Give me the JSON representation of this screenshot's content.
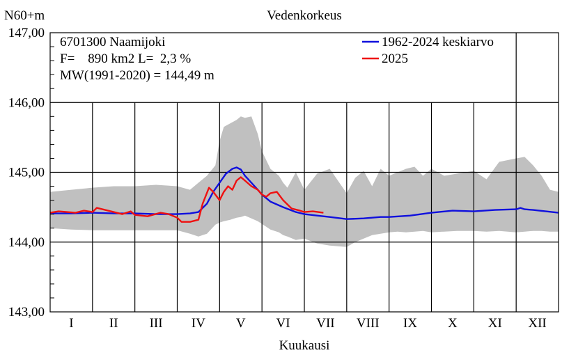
{
  "chart_data": {
    "type": "line",
    "title": "Vedenkorkeus",
    "ylabel": "N60+m",
    "xlabel": "Kuukausi",
    "ylim": [
      143.0,
      147.0
    ],
    "y_ticks": [
      {
        "v": 147.0,
        "label": "147,00"
      },
      {
        "v": 146.0,
        "label": "146,00"
      },
      {
        "v": 145.0,
        "label": "145,00"
      },
      {
        "v": 144.0,
        "label": "144,00"
      },
      {
        "v": 143.0,
        "label": "143,00"
      }
    ],
    "xlim": [
      0,
      12
    ],
    "categories": [
      "I",
      "II",
      "III",
      "IV",
      "V",
      "VI",
      "VII",
      "VIII",
      "IX",
      "X",
      "XI",
      "XII"
    ],
    "info_lines": [
      "6701300 Naamijoki",
      "F=    890 km2 L=  2,3 %",
      "MW(1991-2020) = 144,49 m"
    ],
    "legend": {
      "placement": "top-right"
    },
    "band": {
      "name": "min-max range",
      "color": "#c0c0c0",
      "x": [
        0,
        0.5,
        1.0,
        1.5,
        2.0,
        2.5,
        3.0,
        3.3,
        3.5,
        3.7,
        3.9,
        4.0,
        4.1,
        4.25,
        4.4,
        4.5,
        4.6,
        4.75,
        4.9,
        5.0,
        5.2,
        5.4,
        5.5,
        5.6,
        5.8,
        6.0,
        6.3,
        6.6,
        7.0,
        7.2,
        7.4,
        7.6,
        7.8,
        8.0,
        8.2,
        8.4,
        8.6,
        8.8,
        9.0,
        9.3,
        9.6,
        10.0,
        10.3,
        10.6,
        11.0,
        11.2,
        11.4,
        11.6,
        11.8,
        12.0
      ],
      "upper": [
        144.72,
        144.75,
        144.78,
        144.8,
        144.8,
        144.82,
        144.8,
        144.75,
        144.85,
        144.95,
        145.1,
        145.45,
        145.65,
        145.7,
        145.75,
        145.8,
        145.78,
        145.8,
        145.55,
        145.3,
        145.05,
        144.95,
        144.85,
        144.78,
        145.0,
        144.75,
        144.98,
        145.05,
        144.7,
        144.92,
        145.02,
        144.8,
        145.05,
        144.95,
        145.0,
        145.05,
        145.08,
        144.95,
        145.05,
        144.95,
        144.98,
        145.02,
        144.9,
        145.15,
        145.2,
        145.22,
        145.1,
        144.95,
        144.75,
        144.72
      ],
      "lower": [
        144.2,
        144.18,
        144.17,
        144.17,
        144.17,
        144.17,
        144.17,
        144.12,
        144.08,
        144.12,
        144.25,
        144.28,
        144.3,
        144.32,
        144.35,
        144.36,
        144.38,
        144.34,
        144.3,
        144.26,
        144.18,
        144.14,
        144.1,
        144.08,
        144.03,
        144.05,
        143.98,
        143.95,
        143.93,
        144.0,
        144.05,
        144.1,
        144.12,
        144.14,
        144.15,
        144.14,
        144.15,
        144.16,
        144.14,
        144.15,
        144.16,
        144.16,
        144.15,
        144.16,
        144.14,
        144.15,
        144.16,
        144.16,
        144.15,
        144.15
      ]
    },
    "series": [
      {
        "name": "1962-2024 keskiarvo",
        "color": "#1010dd",
        "x": [
          0,
          0.5,
          1.0,
          1.5,
          2.0,
          2.5,
          3.0,
          3.3,
          3.5,
          3.7,
          3.85,
          4.0,
          4.15,
          4.3,
          4.4,
          4.5,
          4.6,
          4.75,
          4.9,
          5.0,
          5.2,
          5.5,
          5.8,
          6.0,
          6.3,
          6.6,
          7.0,
          7.4,
          7.6,
          7.8,
          8.0,
          8.5,
          9.0,
          9.5,
          10.0,
          10.5,
          11.0,
          11.1,
          11.2,
          11.4,
          11.7,
          12.0
        ],
        "y": [
          144.41,
          144.41,
          144.42,
          144.41,
          144.41,
          144.4,
          144.4,
          144.41,
          144.43,
          144.55,
          144.72,
          144.85,
          144.98,
          145.05,
          145.07,
          145.04,
          144.95,
          144.85,
          144.75,
          144.68,
          144.58,
          144.5,
          144.43,
          144.4,
          144.38,
          144.36,
          144.33,
          144.34,
          144.35,
          144.36,
          144.36,
          144.38,
          144.42,
          144.45,
          144.44,
          144.46,
          144.47,
          144.49,
          144.47,
          144.46,
          144.44,
          144.42
        ]
      },
      {
        "name": "2025",
        "color": "#ee1111",
        "x": [
          0,
          0.2,
          0.4,
          0.6,
          0.8,
          1.0,
          1.1,
          1.3,
          1.5,
          1.7,
          1.9,
          2.0,
          2.3,
          2.6,
          2.8,
          3.0,
          3.1,
          3.3,
          3.5,
          3.6,
          3.75,
          3.85,
          4.0,
          4.1,
          4.2,
          4.3,
          4.4,
          4.5,
          4.6,
          4.75,
          4.9,
          5.0,
          5.1,
          5.2,
          5.35,
          5.5,
          5.7,
          5.9,
          6.0,
          6.2,
          6.45
        ],
        "y": [
          144.42,
          144.44,
          144.43,
          144.42,
          144.45,
          144.43,
          144.49,
          144.46,
          144.43,
          144.4,
          144.44,
          144.39,
          144.37,
          144.42,
          144.4,
          144.35,
          144.29,
          144.29,
          144.32,
          144.55,
          144.78,
          144.72,
          144.6,
          144.72,
          144.8,
          144.75,
          144.88,
          144.93,
          144.88,
          144.8,
          144.75,
          144.68,
          144.65,
          144.7,
          144.72,
          144.6,
          144.48,
          144.45,
          144.43,
          144.44,
          144.42
        ]
      }
    ]
  }
}
